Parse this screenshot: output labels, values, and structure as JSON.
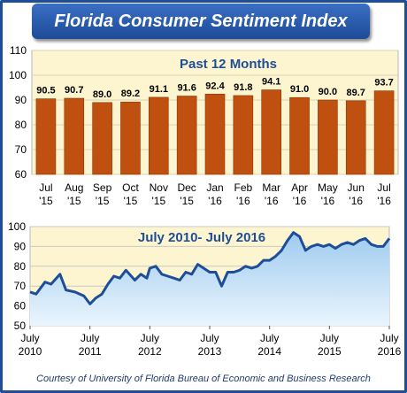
{
  "title": "Florida Consumer Sentiment Index",
  "footer": "Courtesy of University of Florida Bureau of Economic and Business Research",
  "chart_data": [
    {
      "type": "bar",
      "title": "Past 12 Months",
      "categories": [
        "Jul\n'15",
        "Aug\n'15",
        "Sep\n'15",
        "Oct\n'15",
        "Nov\n'15",
        "Dec\n'15",
        "Jan\n'16",
        "Feb\n'16",
        "Mar\n'16",
        "Apr\n'16",
        "May\n'16",
        "Jun\n'16",
        "Jul\n'16"
      ],
      "values": [
        90.5,
        90.7,
        89.0,
        89.2,
        91.1,
        91.6,
        92.4,
        91.8,
        94.1,
        91.0,
        90.0,
        89.7,
        93.7
      ],
      "data_labels": [
        "90.5",
        "90.7",
        "89.0",
        "89.2",
        "91.1",
        "91.6",
        "92.4",
        "91.8",
        "94.1",
        "91.0",
        "90.0",
        "89.7",
        "93.7"
      ],
      "ylim": [
        60,
        110
      ],
      "yticks": [
        "60",
        "70",
        "80",
        "90",
        "100",
        "110"
      ],
      "bar_color": "#c0500f",
      "background": "#fdf5cf",
      "grid": true
    },
    {
      "type": "area",
      "title": "July 2010- July 2016",
      "xlim": [
        2010.5,
        2016.5
      ],
      "ylim": [
        50,
        100
      ],
      "yticks": [
        "50",
        "60",
        "70",
        "80",
        "90",
        "100"
      ],
      "xtick_labels": [
        "July\n2010",
        "July\n2011",
        "July\n2012",
        "July\n2013",
        "July\n2014",
        "July\n2015",
        "July\n2016"
      ],
      "x": [
        2010.5,
        2010.6,
        2010.75,
        2010.85,
        2011.0,
        2011.1,
        2011.25,
        2011.4,
        2011.5,
        2011.6,
        2011.7,
        2011.8,
        2011.9,
        2012.0,
        2012.1,
        2012.25,
        2012.35,
        2012.45,
        2012.5,
        2012.6,
        2012.7,
        2012.8,
        2012.9,
        2013.0,
        2013.1,
        2013.2,
        2013.3,
        2013.4,
        2013.5,
        2013.6,
        2013.7,
        2013.8,
        2013.9,
        2014.0,
        2014.1,
        2014.2,
        2014.3,
        2014.4,
        2014.5,
        2014.6,
        2014.7,
        2014.8,
        2014.9,
        2015.0,
        2015.1,
        2015.2,
        2015.3,
        2015.4,
        2015.5,
        2015.6,
        2015.7,
        2015.8,
        2015.9,
        2016.0,
        2016.1,
        2016.2,
        2016.3,
        2016.4,
        2016.5
      ],
      "y": [
        67,
        66,
        72,
        71,
        76,
        68,
        67,
        65,
        61,
        64,
        66,
        71,
        75,
        74,
        78,
        73,
        76,
        74,
        79,
        80,
        76,
        75,
        74,
        73,
        77,
        76,
        81,
        79,
        77,
        77,
        70,
        77,
        77,
        78,
        80,
        79,
        80,
        83,
        83,
        85,
        88,
        93,
        97,
        95,
        88,
        90,
        91,
        90,
        91,
        89,
        91,
        92,
        91,
        93,
        94,
        91,
        90,
        90,
        94
      ],
      "line_color": "#1f4e99",
      "grid": true
    }
  ]
}
